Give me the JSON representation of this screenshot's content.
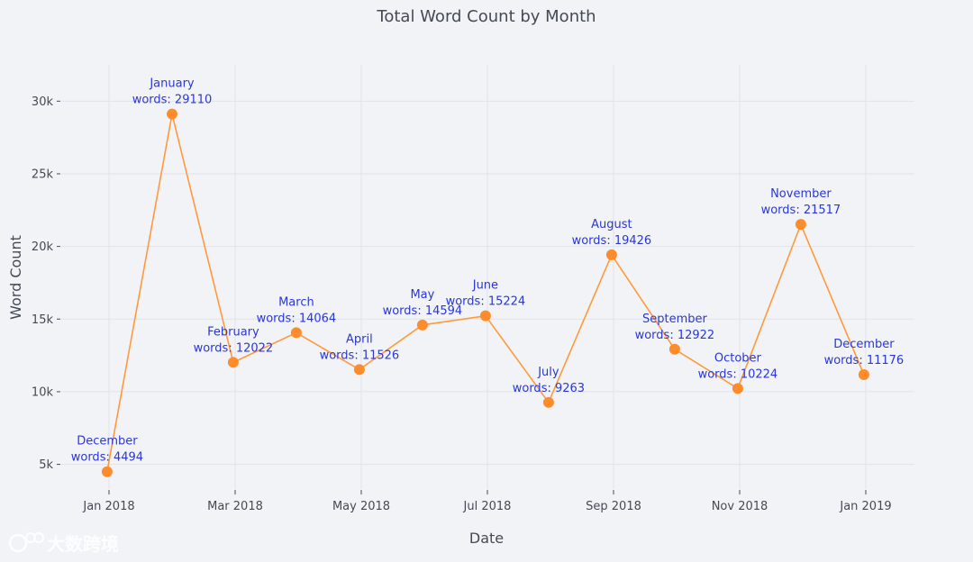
{
  "chart_data": {
    "type": "line",
    "title": "Total Word Count by Month",
    "xlabel": "Date",
    "ylabel": "Word Count",
    "ylim": [
      3300,
      32500
    ],
    "yticks": [
      {
        "value": 5000,
        "label": "5k"
      },
      {
        "value": 10000,
        "label": "10k"
      },
      {
        "value": 15000,
        "label": "15k"
      },
      {
        "value": 20000,
        "label": "20k"
      },
      {
        "value": 25000,
        "label": "25k"
      },
      {
        "value": 30000,
        "label": "30k"
      }
    ],
    "xticks": [
      {
        "month_index": 0,
        "label": "Jan 2018"
      },
      {
        "month_index": 2,
        "label": "Mar 2018"
      },
      {
        "month_index": 4,
        "label": "May 2018"
      },
      {
        "month_index": 6,
        "label": "Jul 2018"
      },
      {
        "month_index": 8,
        "label": "Sep 2018"
      },
      {
        "month_index": 10,
        "label": "Nov 2018"
      },
      {
        "month_index": 12,
        "label": "Jan 2019"
      }
    ],
    "series": [
      {
        "name": "Word Count",
        "color": "#ff8c2a",
        "points": [
          {
            "month_index": -0.03,
            "month": "December",
            "words": 4494,
            "label_line2": "words: 4494"
          },
          {
            "month_index": 1.0,
            "month": "January",
            "words": 29110,
            "label_line2": "words: 29110"
          },
          {
            "month_index": 1.97,
            "month": "February",
            "words": 12022,
            "label_line2": "words: 12022"
          },
          {
            "month_index": 2.97,
            "month": "March",
            "words": 14064,
            "label_line2": "words: 14064"
          },
          {
            "month_index": 3.97,
            "month": "April",
            "words": 11526,
            "label_line2": "words: 11526"
          },
          {
            "month_index": 4.97,
            "month": "May",
            "words": 14594,
            "label_line2": "words: 14594"
          },
          {
            "month_index": 5.97,
            "month": "June",
            "words": 15224,
            "label_line2": "words: 15224"
          },
          {
            "month_index": 6.97,
            "month": "July",
            "words": 9263,
            "label_line2": "words: 9263"
          },
          {
            "month_index": 7.97,
            "month": "August",
            "words": 19426,
            "label_line2": "words: 19426"
          },
          {
            "month_index": 8.97,
            "month": "September",
            "words": 12922,
            "label_line2": "words: 12922"
          },
          {
            "month_index": 9.97,
            "month": "October",
            "words": 10224,
            "label_line2": "words: 10224"
          },
          {
            "month_index": 10.97,
            "month": "November",
            "words": 21517,
            "label_line2": "words: 21517"
          },
          {
            "month_index": 11.97,
            "month": "December",
            "words": 11176,
            "label_line2": "words: 11176"
          }
        ]
      }
    ]
  },
  "watermark": {
    "text": "大数跨境",
    "icon": "logo-icon"
  }
}
